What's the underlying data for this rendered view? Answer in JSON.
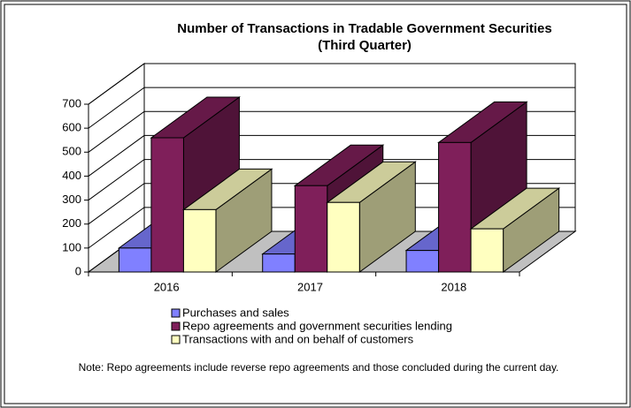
{
  "chart_data": {
    "type": "bar3d",
    "title": "Number of Transactions in Tradable Government Securities",
    "subtitle": "(Third Quarter)",
    "categories": [
      "2016",
      "2017",
      "2018"
    ],
    "series": [
      {
        "name": "Purchases and sales",
        "color": "#8080ff",
        "values": [
          100,
          75,
          90
        ]
      },
      {
        "name": "Repo agreements and government securities lending",
        "color": "#7f1f5a",
        "values": [
          560,
          360,
          540
        ]
      },
      {
        "name": "Transactions with and on behalf of customers",
        "color": "#ffffc0",
        "values": [
          260,
          290,
          180
        ]
      }
    ],
    "ylim": [
      0,
      700
    ],
    "yticks": [
      0,
      100,
      200,
      300,
      400,
      500,
      600,
      700
    ],
    "grid": true,
    "note": "Note: Repo agreements include reverse repo agreements and those concluded during the current day."
  }
}
